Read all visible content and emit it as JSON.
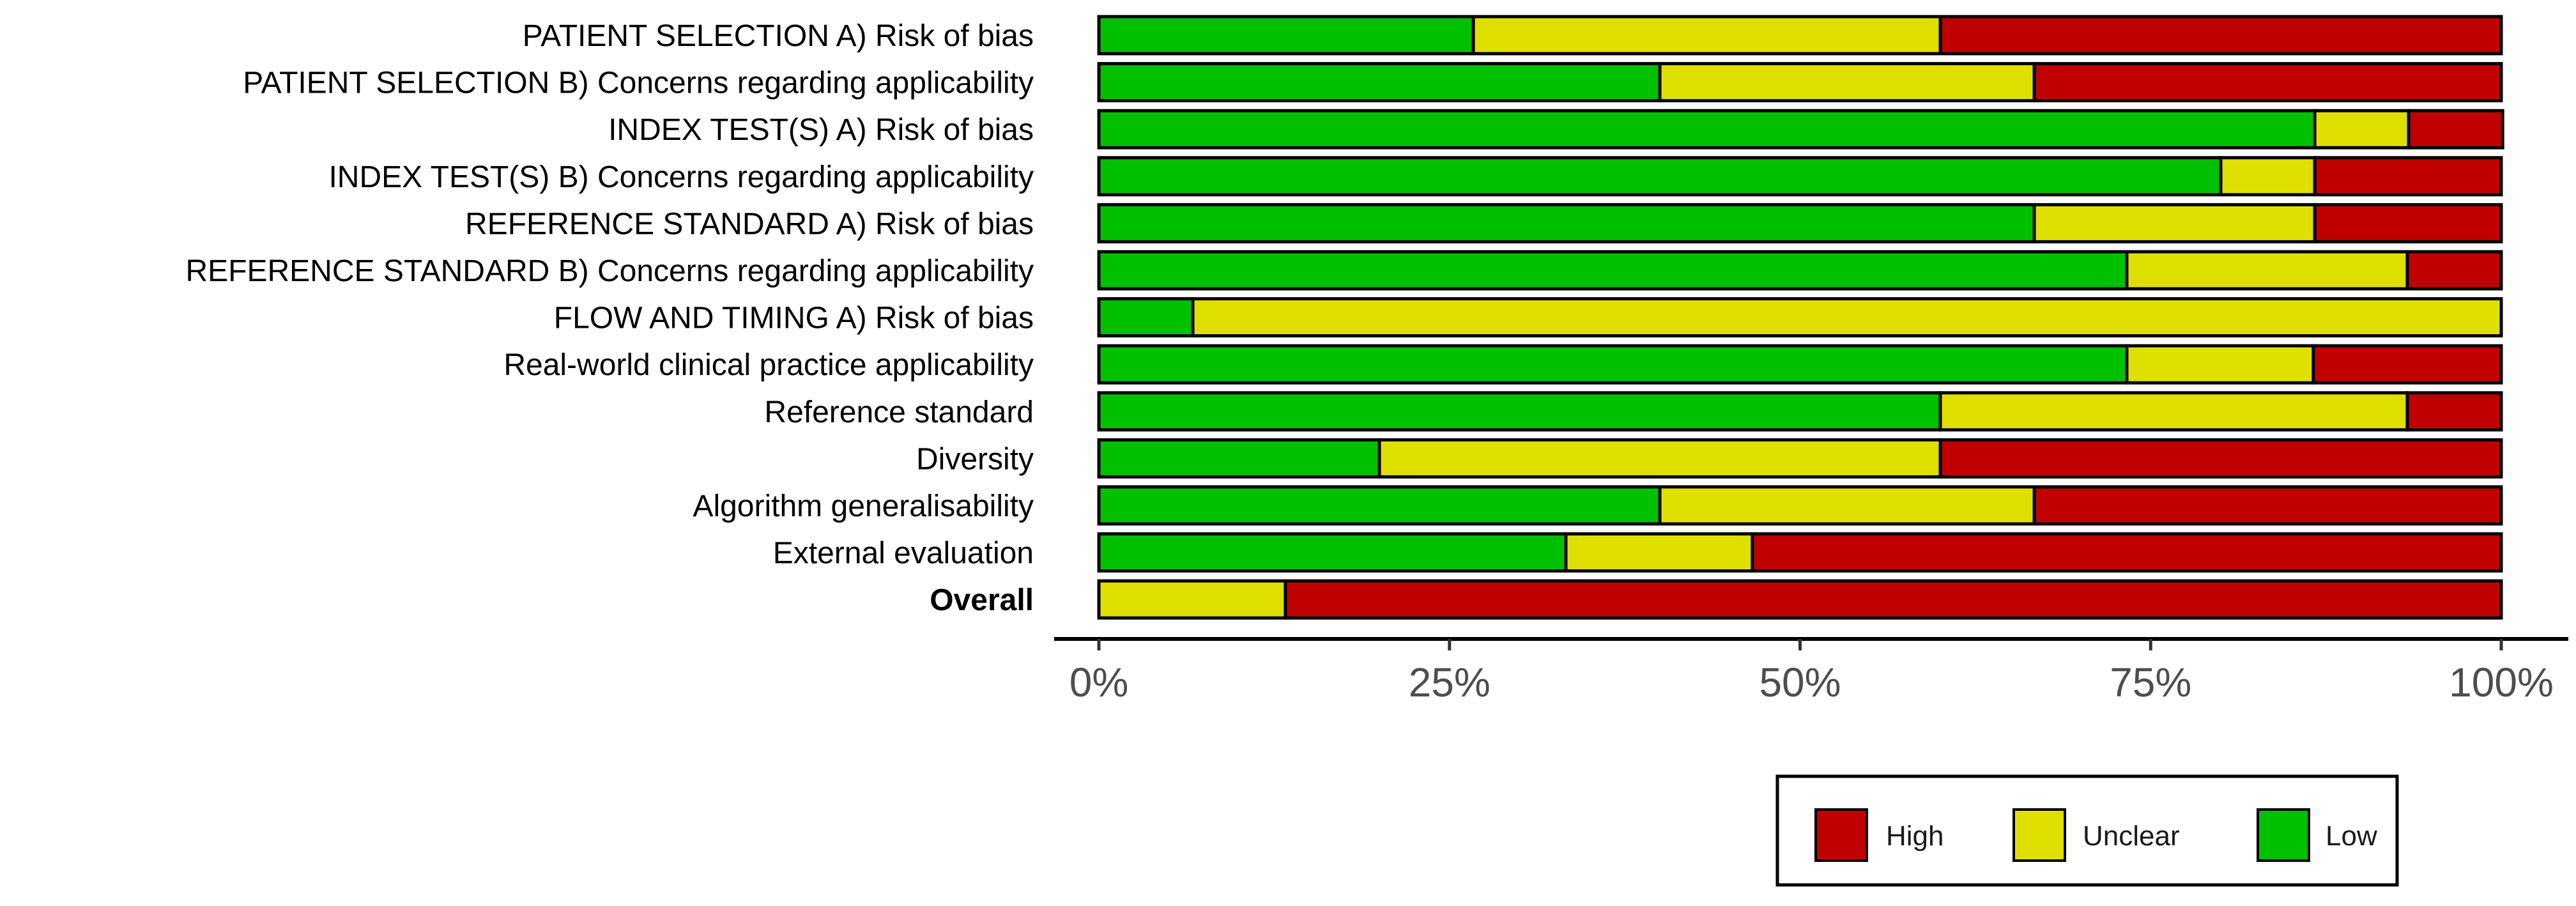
{
  "chart_data": {
    "type": "bar",
    "orientation": "horizontal",
    "stacked": true,
    "title": "",
    "xlabel": "",
    "ylabel": "",
    "xlim": [
      0,
      100
    ],
    "x_ticks": [
      0,
      25,
      50,
      75,
      100
    ],
    "x_tick_labels": [
      "0%",
      "25%",
      "50%",
      "75%",
      "100%"
    ],
    "categories": [
      "PATIENT SELECTION A) Risk of bias",
      "PATIENT SELECTION B) Concerns regarding applicability",
      "INDEX TEST(S) A) Risk of bias",
      "INDEX TEST(S) B) Concerns regarding applicability",
      "REFERENCE STANDARD A) Risk of bias",
      "REFERENCE STANDARD B) Concerns regarding applicability",
      "FLOW AND TIMING A) Risk of bias",
      "Real-world clinical practice applicability",
      "Reference standard",
      "Diversity",
      "Algorithm generalisability",
      "External evaluation",
      "Overall"
    ],
    "bold_categories": [
      "Overall"
    ],
    "series": [
      {
        "name": "Low",
        "color": "#00c000",
        "values": [
          26.7,
          40,
          86.7,
          80,
          66.7,
          73.3,
          6.7,
          73.3,
          60,
          20,
          40,
          33.3,
          0
        ]
      },
      {
        "name": "Unclear",
        "color": "#e0e000",
        "values": [
          33.3,
          26.7,
          6.7,
          6.7,
          20,
          20,
          93.3,
          13.3,
          33.3,
          40,
          26.7,
          13.3,
          13.3
        ]
      },
      {
        "name": "High",
        "color": "#c00000",
        "values": [
          40,
          33.3,
          6.7,
          13.3,
          13.3,
          6.7,
          0,
          13.4,
          6.7,
          40,
          33.3,
          53.4,
          86.7
        ]
      }
    ],
    "legend": {
      "position": "bottom-right",
      "order": [
        "High",
        "Unclear",
        "Low"
      ]
    }
  }
}
